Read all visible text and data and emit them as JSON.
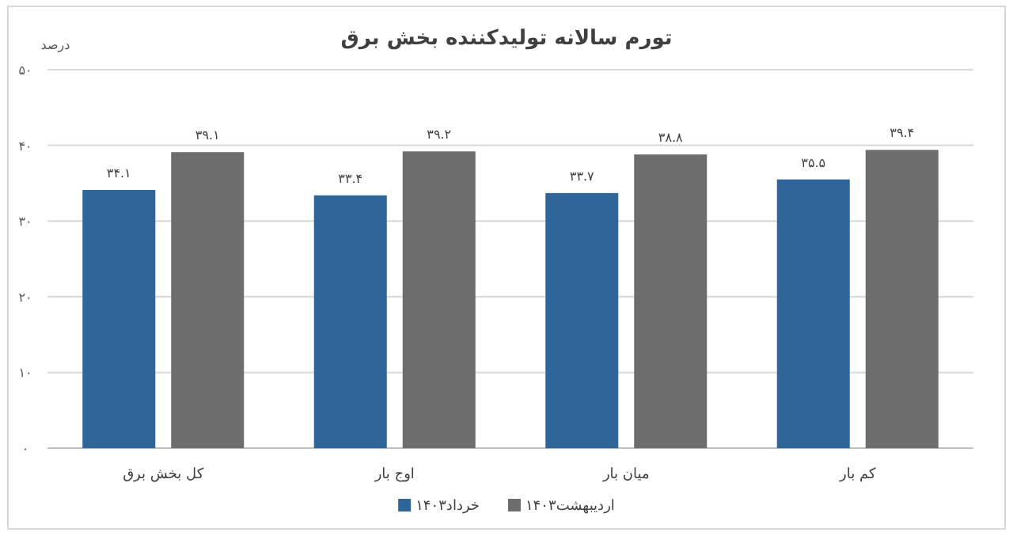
{
  "chart_data": {
    "type": "bar",
    "title": "تورم سالانه تولیدکننده بخش برق",
    "ylabel": "درصد",
    "categories": [
      "کل بخش برق",
      "اوج بار",
      "میان بار",
      "کم بار"
    ],
    "series": [
      {
        "name": "خرداد۱۴۰۳",
        "color": "#2e6699",
        "values": [
          34.1,
          33.4,
          33.7,
          35.5
        ],
        "value_labels": [
          "۳۴.۱",
          "۳۳.۴",
          "۳۳.۷",
          "۳۵.۵"
        ]
      },
      {
        "name": "اردیبهشت۱۴۰۳",
        "color": "#6d6d6d",
        "values": [
          39.1,
          39.2,
          38.8,
          39.4
        ],
        "value_labels": [
          "۳۹.۱",
          "۳۹.۲",
          "۳۸.۸",
          "۳۹.۴"
        ]
      }
    ],
    "ylim": [
      0,
      50
    ],
    "yticks": [
      {
        "value": 0,
        "label": "۰"
      },
      {
        "value": 10,
        "label": "۱۰"
      },
      {
        "value": 20,
        "label": "۲۰"
      },
      {
        "value": 30,
        "label": "۳۰"
      },
      {
        "value": 40,
        "label": "۴۰"
      },
      {
        "value": 50,
        "label": "۵۰"
      }
    ],
    "grid": "y",
    "legend": "bottom"
  }
}
